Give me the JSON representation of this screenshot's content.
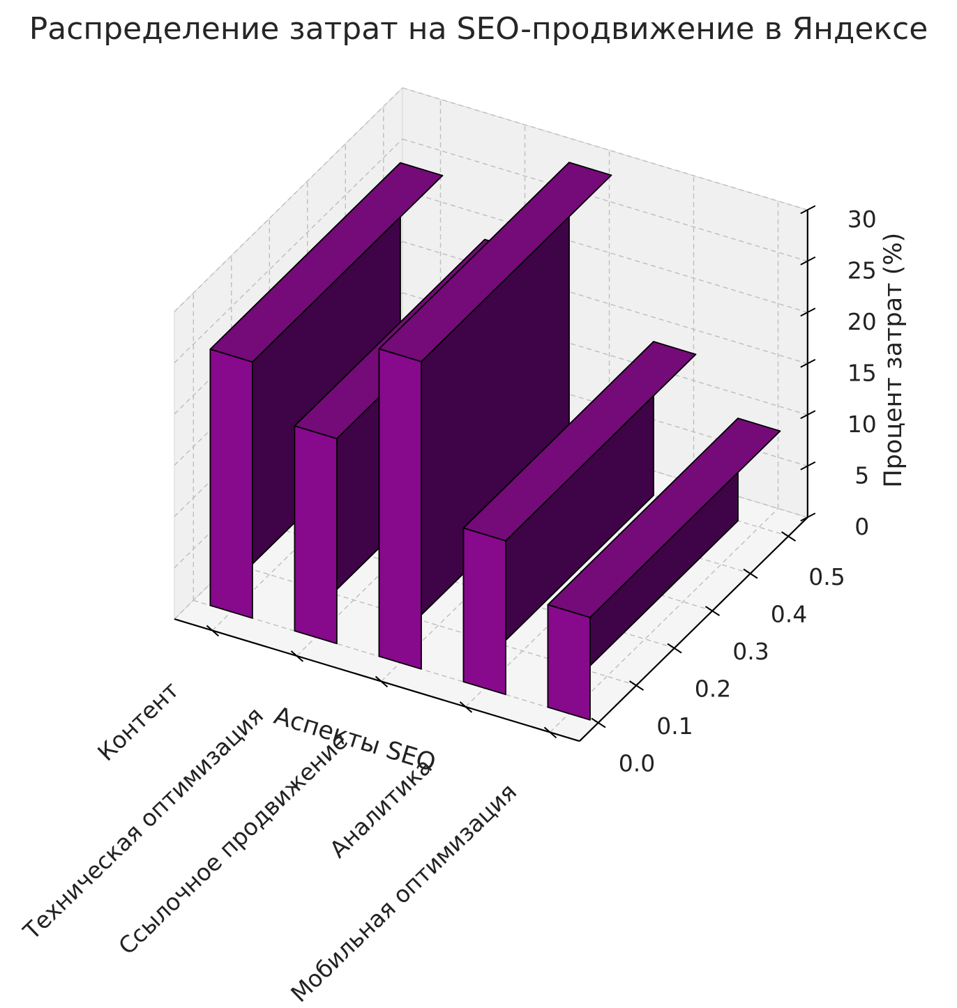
{
  "page": {
    "background": "#ffffff"
  },
  "chart_data": {
    "type": "bar",
    "projection": "3d",
    "title": "Распределение затрат на SEO-продвижение в Яндексе",
    "categories": [
      "Контент",
      "Техническая оптимизация",
      "Ссылочное продвижение",
      "Аналитика",
      "Мобильная оптимизация"
    ],
    "values": [
      25,
      20,
      30,
      15,
      10
    ],
    "unit": "%",
    "xlabel": "Аспекты SEO",
    "zlabel": "Процент затрат (%)",
    "y_ticks": [
      0.0,
      0.1,
      0.2,
      0.3,
      0.4,
      0.5
    ],
    "z_ticks": [
      0,
      5,
      10,
      15,
      20,
      25,
      30
    ],
    "zlim": [
      0,
      30
    ],
    "ylim": [
      0,
      0.5
    ],
    "bar_width": 0.5,
    "bar_depth": 0.5,
    "grid": true,
    "legend": false,
    "colors": {
      "bar_front": "#87098C",
      "bar_top": "#750A79",
      "bar_side": "#3F0347",
      "bar_edge": "#000000",
      "pane_wall": "#F0F0F1",
      "pane_floor": "#F5F5F6",
      "pane_edge": "#DCDCDC",
      "grid_line": "#BDBDBD",
      "axis_line": "#000000",
      "text": "#222222"
    }
  }
}
